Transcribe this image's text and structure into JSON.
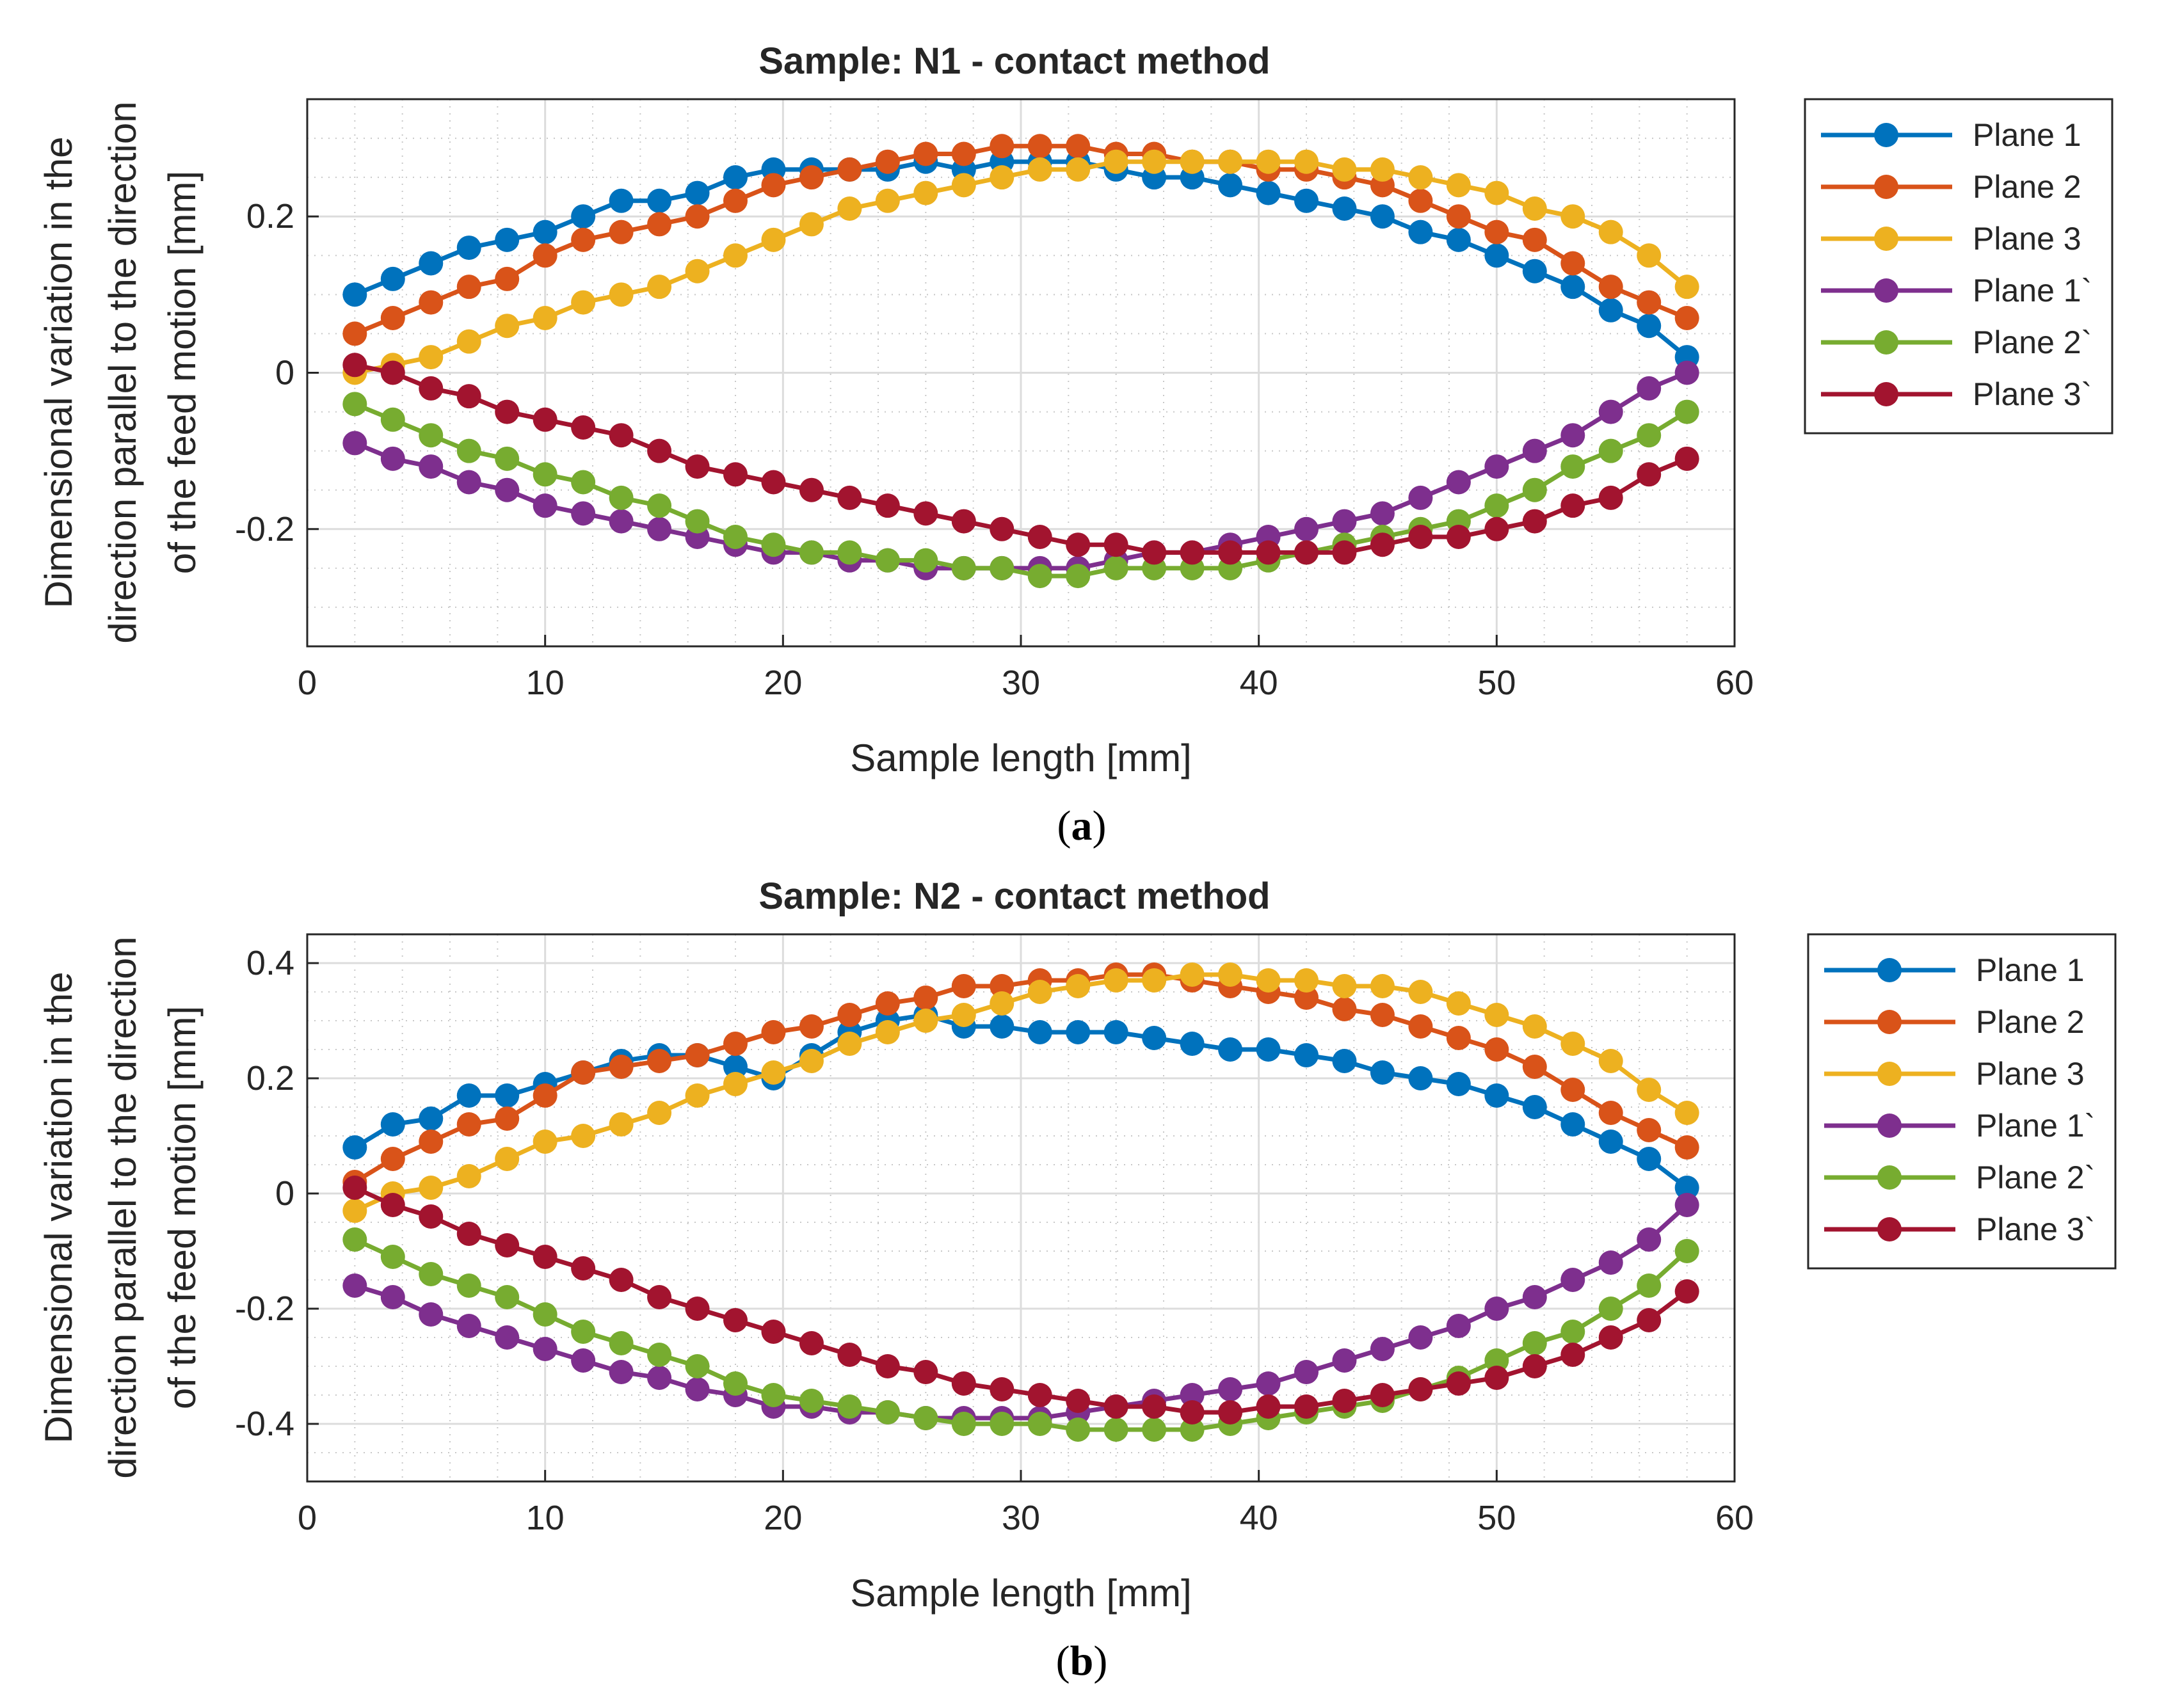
{
  "chart_data": [
    {
      "type": "line",
      "title": "Sample: N1 - contact method",
      "xlabel": "Sample length [mm]",
      "ylabel": [
        "Dimensional variation in the",
        "direction parallel to the direction",
        "of the feed motion [mm]"
      ],
      "panel_label": "a",
      "xlim": [
        0,
        60
      ],
      "ylim": [
        -0.35,
        0.35
      ],
      "xticks": [
        0,
        10,
        20,
        30,
        40,
        50,
        60
      ],
      "xtick_labels": [
        "0",
        "10",
        "20",
        "30",
        "40",
        "50",
        "60"
      ],
      "yticks": [
        -0.2,
        0,
        0.2
      ],
      "ytick_labels": [
        "-0.2",
        "0",
        "0.2"
      ],
      "grid": true,
      "minor_grid": true,
      "legend": "outside-right-top",
      "x": [
        2,
        3.6,
        5.2,
        6.8,
        8.4,
        10,
        11.6,
        13.2,
        14.8,
        16.4,
        18,
        19.6,
        21.2,
        22.8,
        24.4,
        26,
        27.6,
        29.2,
        30.8,
        32.4,
        34,
        35.6,
        37.2,
        38.8,
        40.4,
        42,
        43.6,
        45.2,
        46.8,
        48.4,
        50,
        51.6,
        53.2,
        54.8,
        56.4,
        58
      ],
      "series": [
        {
          "name": "Plane 1",
          "color": "#0072BD",
          "values": [
            0.1,
            0.12,
            0.14,
            0.16,
            0.17,
            0.18,
            0.2,
            0.22,
            0.22,
            0.23,
            0.25,
            0.26,
            0.26,
            0.26,
            0.26,
            0.27,
            0.26,
            0.27,
            0.27,
            0.27,
            0.26,
            0.25,
            0.25,
            0.24,
            0.23,
            0.22,
            0.21,
            0.2,
            0.18,
            0.17,
            0.15,
            0.13,
            0.11,
            0.08,
            0.06,
            0.02
          ]
        },
        {
          "name": "Plane 2",
          "color": "#D95319",
          "values": [
            0.05,
            0.07,
            0.09,
            0.11,
            0.12,
            0.15,
            0.17,
            0.18,
            0.19,
            0.2,
            0.22,
            0.24,
            0.25,
            0.26,
            0.27,
            0.28,
            0.28,
            0.29,
            0.29,
            0.29,
            0.28,
            0.28,
            0.27,
            0.27,
            0.26,
            0.26,
            0.25,
            0.24,
            0.22,
            0.2,
            0.18,
            0.17,
            0.14,
            0.11,
            0.09,
            0.07
          ]
        },
        {
          "name": "Plane 3",
          "color": "#EDB120",
          "values": [
            0.0,
            0.01,
            0.02,
            0.04,
            0.06,
            0.07,
            0.09,
            0.1,
            0.11,
            0.13,
            0.15,
            0.17,
            0.19,
            0.21,
            0.22,
            0.23,
            0.24,
            0.25,
            0.26,
            0.26,
            0.27,
            0.27,
            0.27,
            0.27,
            0.27,
            0.27,
            0.26,
            0.26,
            0.25,
            0.24,
            0.23,
            0.21,
            0.2,
            0.18,
            0.15,
            0.11
          ]
        },
        {
          "name": "Plane 1`",
          "color": "#7E2F8E",
          "values": [
            -0.09,
            -0.11,
            -0.12,
            -0.14,
            -0.15,
            -0.17,
            -0.18,
            -0.19,
            -0.2,
            -0.21,
            -0.22,
            -0.23,
            -0.23,
            -0.24,
            -0.24,
            -0.25,
            -0.25,
            -0.25,
            -0.25,
            -0.25,
            -0.24,
            -0.23,
            -0.23,
            -0.22,
            -0.21,
            -0.2,
            -0.19,
            -0.18,
            -0.16,
            -0.14,
            -0.12,
            -0.1,
            -0.08,
            -0.05,
            -0.02,
            0.0
          ]
        },
        {
          "name": "Plane 2`",
          "color": "#77AC30",
          "values": [
            -0.04,
            -0.06,
            -0.08,
            -0.1,
            -0.11,
            -0.13,
            -0.14,
            -0.16,
            -0.17,
            -0.19,
            -0.21,
            -0.22,
            -0.23,
            -0.23,
            -0.24,
            -0.24,
            -0.25,
            -0.25,
            -0.26,
            -0.26,
            -0.25,
            -0.25,
            -0.25,
            -0.25,
            -0.24,
            -0.23,
            -0.22,
            -0.21,
            -0.2,
            -0.19,
            -0.17,
            -0.15,
            -0.12,
            -0.1,
            -0.08,
            -0.05
          ]
        },
        {
          "name": "Plane 3`",
          "color": "#A2142F",
          "values": [
            0.01,
            0.0,
            -0.02,
            -0.03,
            -0.05,
            -0.06,
            -0.07,
            -0.08,
            -0.1,
            -0.12,
            -0.13,
            -0.14,
            -0.15,
            -0.16,
            -0.17,
            -0.18,
            -0.19,
            -0.2,
            -0.21,
            -0.22,
            -0.22,
            -0.23,
            -0.23,
            -0.23,
            -0.23,
            -0.23,
            -0.23,
            -0.22,
            -0.21,
            -0.21,
            -0.2,
            -0.19,
            -0.17,
            -0.16,
            -0.13,
            -0.11
          ]
        }
      ]
    },
    {
      "type": "line",
      "title": "Sample: N2 - contact method",
      "xlabel": "Sample length [mm]",
      "ylabel": [
        "Dimensional variation in the",
        "direction parallel to the direction",
        "of the feed motion [mm]"
      ],
      "panel_label": "b",
      "xlim": [
        0,
        60
      ],
      "ylim": [
        -0.5,
        0.45
      ],
      "xticks": [
        0,
        10,
        20,
        30,
        40,
        50,
        60
      ],
      "xtick_labels": [
        "0",
        "10",
        "20",
        "30",
        "40",
        "50",
        "60"
      ],
      "yticks": [
        -0.4,
        -0.2,
        0,
        0.2,
        0.4
      ],
      "ytick_labels": [
        "-0.4",
        "-0.2",
        "0",
        "0.2",
        "0.4"
      ],
      "grid": true,
      "minor_grid": true,
      "legend": "outside-right-top",
      "x": [
        2,
        3.6,
        5.2,
        6.8,
        8.4,
        10,
        11.6,
        13.2,
        14.8,
        16.4,
        18,
        19.6,
        21.2,
        22.8,
        24.4,
        26,
        27.6,
        29.2,
        30.8,
        32.4,
        34,
        35.6,
        37.2,
        38.8,
        40.4,
        42,
        43.6,
        45.2,
        46.8,
        48.4,
        50,
        51.6,
        53.2,
        54.8,
        56.4,
        58
      ],
      "series": [
        {
          "name": "Plane 1",
          "color": "#0072BD",
          "values": [
            0.08,
            0.12,
            0.13,
            0.17,
            0.17,
            0.19,
            0.21,
            0.23,
            0.24,
            0.24,
            0.22,
            0.2,
            0.24,
            0.28,
            0.3,
            0.31,
            0.29,
            0.29,
            0.28,
            0.28,
            0.28,
            0.27,
            0.26,
            0.25,
            0.25,
            0.24,
            0.23,
            0.21,
            0.2,
            0.19,
            0.17,
            0.15,
            0.12,
            0.09,
            0.06,
            0.01
          ]
        },
        {
          "name": "Plane 2",
          "color": "#D95319",
          "values": [
            0.02,
            0.06,
            0.09,
            0.12,
            0.13,
            0.17,
            0.21,
            0.22,
            0.23,
            0.24,
            0.26,
            0.28,
            0.29,
            0.31,
            0.33,
            0.34,
            0.36,
            0.36,
            0.37,
            0.37,
            0.38,
            0.38,
            0.37,
            0.36,
            0.35,
            0.34,
            0.32,
            0.31,
            0.29,
            0.27,
            0.25,
            0.22,
            0.18,
            0.14,
            0.11,
            0.08
          ]
        },
        {
          "name": "Plane 3",
          "color": "#EDB120",
          "values": [
            -0.03,
            0.0,
            0.01,
            0.03,
            0.06,
            0.09,
            0.1,
            0.12,
            0.14,
            0.17,
            0.19,
            0.21,
            0.23,
            0.26,
            0.28,
            0.3,
            0.31,
            0.33,
            0.35,
            0.36,
            0.37,
            0.37,
            0.38,
            0.38,
            0.37,
            0.37,
            0.36,
            0.36,
            0.35,
            0.33,
            0.31,
            0.29,
            0.26,
            0.23,
            0.18,
            0.14
          ]
        },
        {
          "name": "Plane 1`",
          "color": "#7E2F8E",
          "values": [
            -0.16,
            -0.18,
            -0.21,
            -0.23,
            -0.25,
            -0.27,
            -0.29,
            -0.31,
            -0.32,
            -0.34,
            -0.35,
            -0.37,
            -0.37,
            -0.38,
            -0.38,
            -0.39,
            -0.39,
            -0.39,
            -0.39,
            -0.38,
            -0.37,
            -0.36,
            -0.35,
            -0.34,
            -0.33,
            -0.31,
            -0.29,
            -0.27,
            -0.25,
            -0.23,
            -0.2,
            -0.18,
            -0.15,
            -0.12,
            -0.08,
            -0.02
          ]
        },
        {
          "name": "Plane 2`",
          "color": "#77AC30",
          "values": [
            -0.08,
            -0.11,
            -0.14,
            -0.16,
            -0.18,
            -0.21,
            -0.24,
            -0.26,
            -0.28,
            -0.3,
            -0.33,
            -0.35,
            -0.36,
            -0.37,
            -0.38,
            -0.39,
            -0.4,
            -0.4,
            -0.4,
            -0.41,
            -0.41,
            -0.41,
            -0.41,
            -0.4,
            -0.39,
            -0.38,
            -0.37,
            -0.36,
            -0.34,
            -0.32,
            -0.29,
            -0.26,
            -0.24,
            -0.2,
            -0.16,
            -0.1
          ]
        },
        {
          "name": "Plane 3`",
          "color": "#A2142F",
          "values": [
            0.01,
            -0.02,
            -0.04,
            -0.07,
            -0.09,
            -0.11,
            -0.13,
            -0.15,
            -0.18,
            -0.2,
            -0.22,
            -0.24,
            -0.26,
            -0.28,
            -0.3,
            -0.31,
            -0.33,
            -0.34,
            -0.35,
            -0.36,
            -0.37,
            -0.37,
            -0.38,
            -0.38,
            -0.37,
            -0.37,
            -0.36,
            -0.35,
            -0.34,
            -0.33,
            -0.32,
            -0.3,
            -0.28,
            -0.25,
            -0.22,
            -0.17
          ]
        }
      ]
    }
  ]
}
